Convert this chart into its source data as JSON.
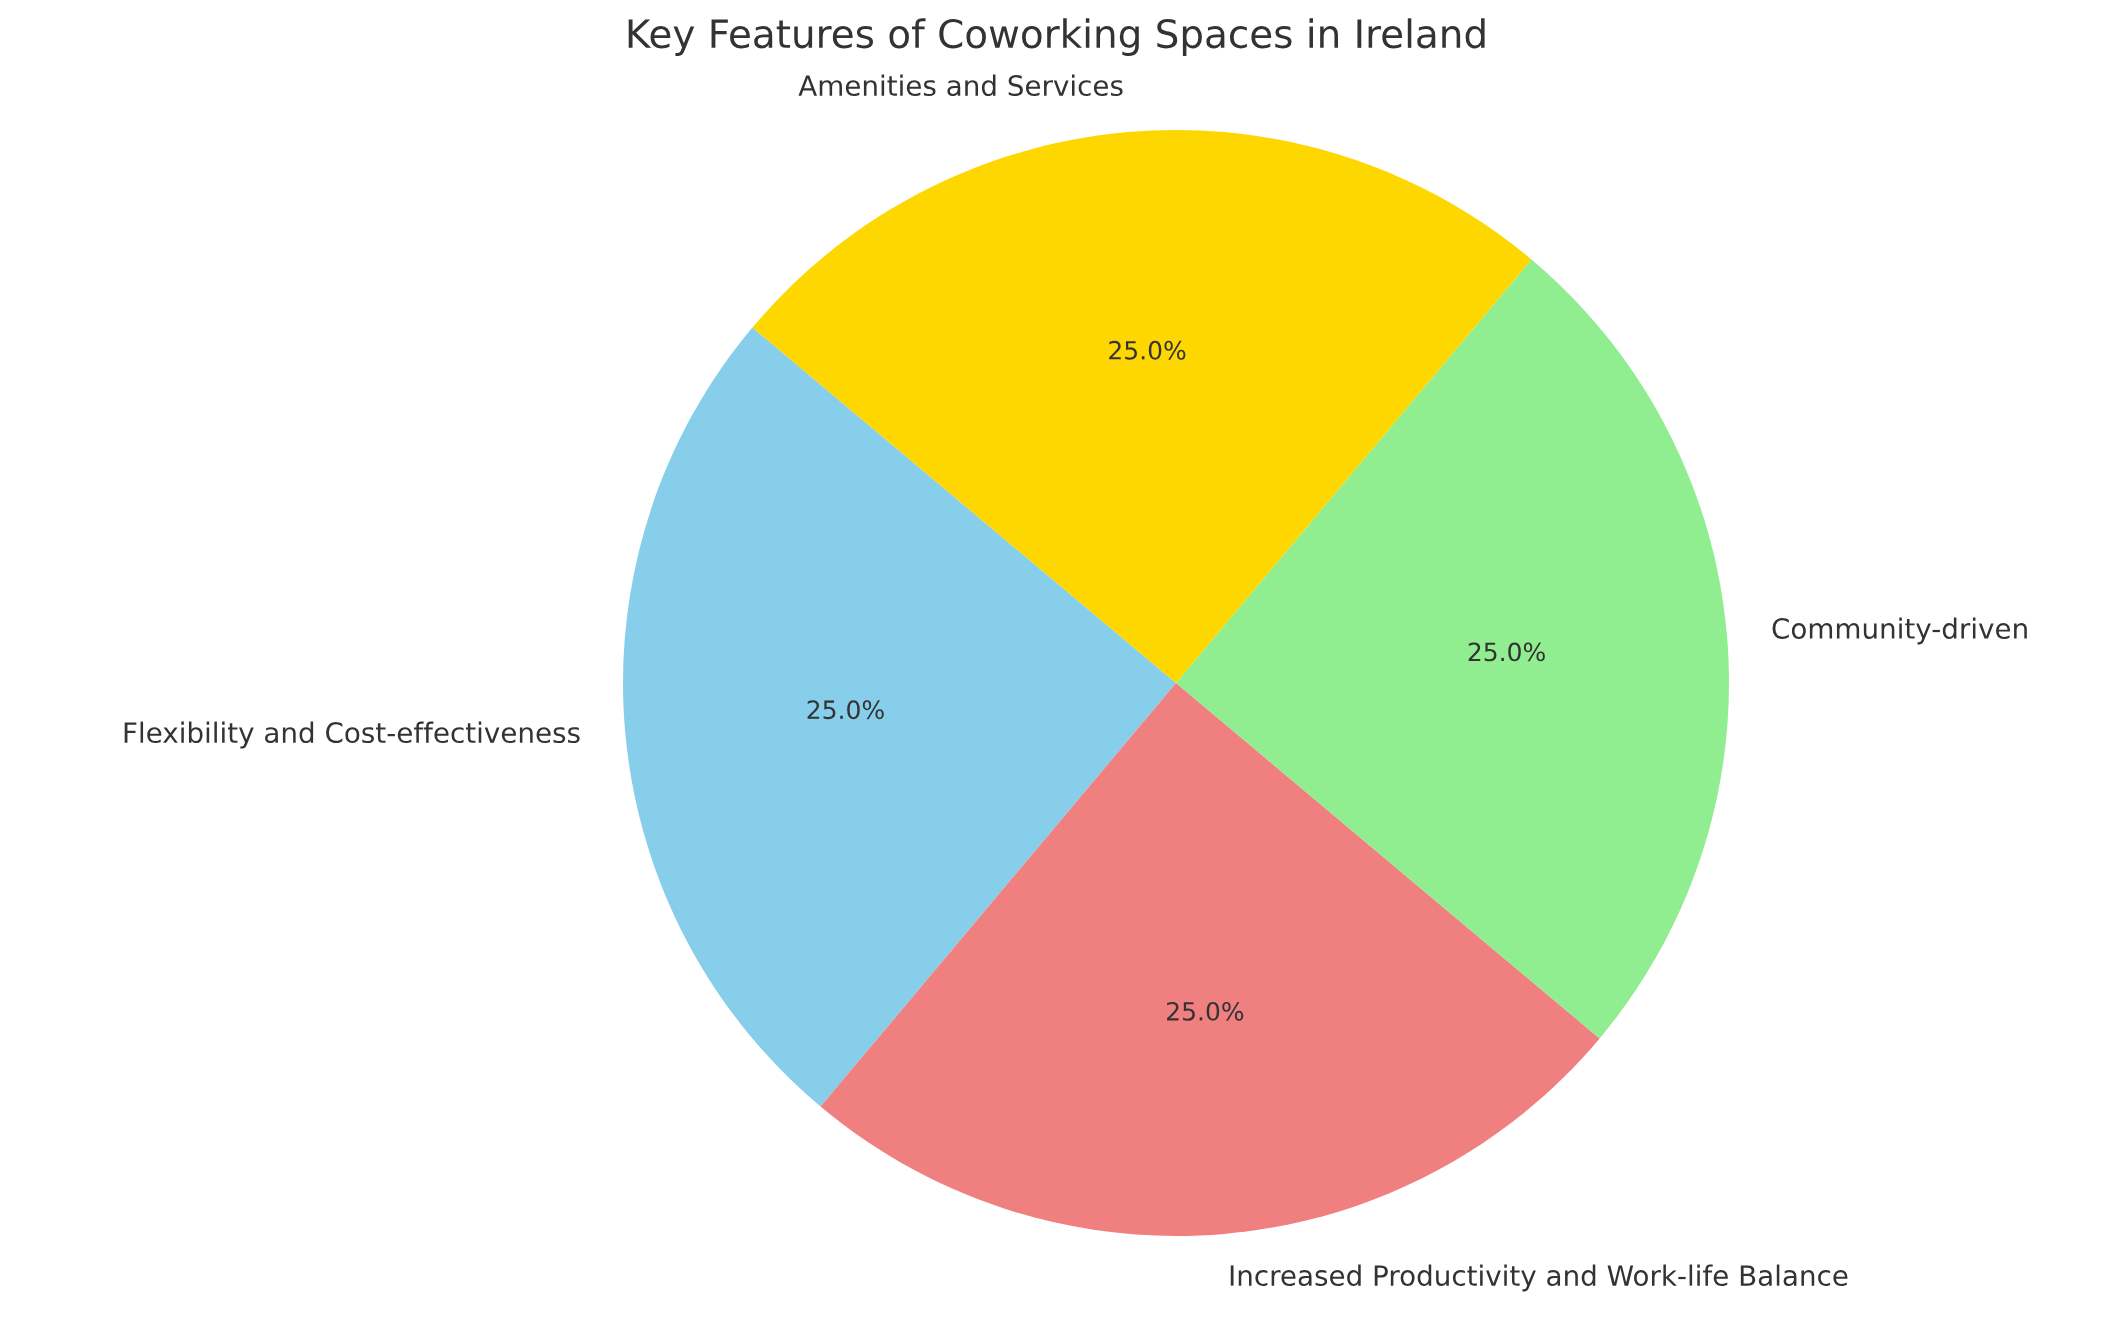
{
  "chart_data": {
    "type": "pie",
    "title": "Key Features of Coworking Spaces in Ireland",
    "categories": [
      "Flexibility and Cost-effectiveness",
      "Increased Productivity and Work-life Balance",
      "Community-driven",
      "Amenities and Services"
    ],
    "values": [
      25,
      25,
      25,
      25
    ],
    "colors": [
      "#87ceeb",
      "#f08080",
      "#90ee90",
      "#ffd700"
    ],
    "value_labels": [
      "25.0%",
      "25.0%",
      "25.0%",
      "25.0%"
    ],
    "legend": false
  }
}
